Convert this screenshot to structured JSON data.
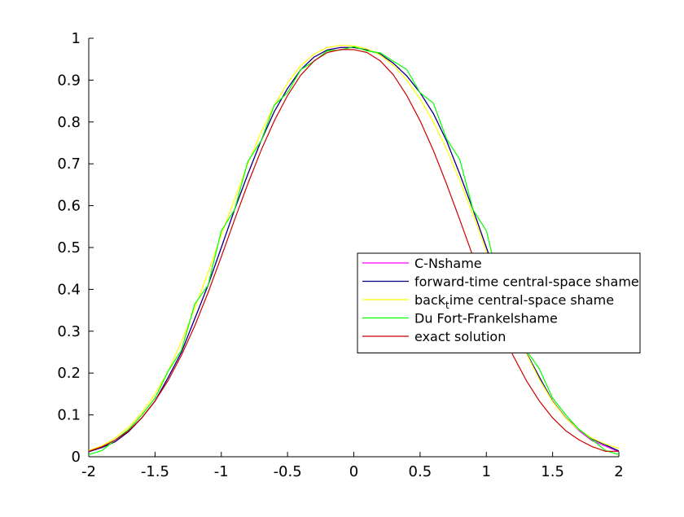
{
  "chart_data": {
    "type": "line",
    "title": "",
    "xlabel": "",
    "ylabel": "",
    "xlim": [
      -2,
      2
    ],
    "ylim": [
      0,
      1
    ],
    "x_ticks": [
      -2,
      -1.5,
      -1,
      -0.5,
      0,
      0.5,
      1,
      1.5,
      2
    ],
    "x_tick_labels": [
      "-2",
      "-1.5",
      "-1",
      "-0.5",
      "0",
      "0.5",
      "1",
      "1.5",
      "2"
    ],
    "y_ticks": [
      0,
      0.1,
      0.2,
      0.3,
      0.4,
      0.5,
      0.6,
      0.7,
      0.8,
      0.9,
      1
    ],
    "y_tick_labels": [
      "0",
      "0.1",
      "0.2",
      "0.3",
      "0.4",
      "0.5",
      "0.6",
      "0.7",
      "0.8",
      "0.9",
      "1"
    ],
    "grid": false,
    "legend_position": "right",
    "x": [
      -2.0,
      -1.9,
      -1.8,
      -1.7,
      -1.6,
      -1.5,
      -1.4,
      -1.3,
      -1.2,
      -1.1,
      -1.0,
      -0.9,
      -0.8,
      -0.7,
      -0.6,
      -0.5,
      -0.4,
      -0.3,
      -0.2,
      -0.1,
      0.0,
      0.1,
      0.2,
      0.3,
      0.4,
      0.5,
      0.6,
      0.7,
      0.8,
      0.9,
      1.0,
      1.1,
      1.2,
      1.3,
      1.4,
      1.5,
      1.6,
      1.7,
      1.8,
      1.9,
      2.0
    ],
    "series": [
      {
        "name": "C-Nshame",
        "color": "#ff00ff",
        "values": [
          0.012,
          0.022,
          0.036,
          0.06,
          0.093,
          0.133,
          0.19,
          0.25,
          0.33,
          0.41,
          0.5,
          0.59,
          0.675,
          0.755,
          0.825,
          0.88,
          0.925,
          0.955,
          0.972,
          0.978,
          0.978,
          0.972,
          0.962,
          0.94,
          0.91,
          0.87,
          0.82,
          0.755,
          0.675,
          0.59,
          0.5,
          0.41,
          0.33,
          0.25,
          0.19,
          0.133,
          0.093,
          0.062,
          0.038,
          0.025,
          0.012
        ]
      },
      {
        "name": "forward-time central-space shame",
        "color": "#000080",
        "values": [
          0.012,
          0.022,
          0.036,
          0.06,
          0.093,
          0.133,
          0.19,
          0.25,
          0.33,
          0.41,
          0.5,
          0.59,
          0.675,
          0.755,
          0.825,
          0.88,
          0.925,
          0.955,
          0.972,
          0.978,
          0.978,
          0.972,
          0.962,
          0.94,
          0.91,
          0.87,
          0.82,
          0.755,
          0.675,
          0.59,
          0.5,
          0.41,
          0.33,
          0.25,
          0.19,
          0.133,
          0.093,
          0.065,
          0.042,
          0.028,
          0.014
        ]
      },
      {
        "name": "back_time central-space shame",
        "color": "#ffff00",
        "values": [
          0.015,
          0.026,
          0.045,
          0.07,
          0.105,
          0.15,
          0.205,
          0.275,
          0.355,
          0.44,
          0.53,
          0.615,
          0.7,
          0.775,
          0.84,
          0.893,
          0.935,
          0.962,
          0.978,
          0.983,
          0.982,
          0.975,
          0.96,
          0.935,
          0.9,
          0.855,
          0.8,
          0.735,
          0.66,
          0.578,
          0.49,
          0.402,
          0.323,
          0.248,
          0.185,
          0.132,
          0.092,
          0.064,
          0.044,
          0.03,
          0.02
        ]
      },
      {
        "name": "Du Fort-Frankelshame",
        "color": "#00ff00",
        "values": [
          0.005,
          0.015,
          0.04,
          0.065,
          0.1,
          0.14,
          0.205,
          0.255,
          0.365,
          0.41,
          0.54,
          0.59,
          0.705,
          0.755,
          0.84,
          0.87,
          0.925,
          0.945,
          0.97,
          0.972,
          0.98,
          0.97,
          0.965,
          0.945,
          0.925,
          0.87,
          0.845,
          0.76,
          0.71,
          0.59,
          0.54,
          0.41,
          0.365,
          0.255,
          0.21,
          0.14,
          0.1,
          0.065,
          0.04,
          0.015,
          0.005
        ]
      },
      {
        "name": "exact solution",
        "color": "#cc0000",
        "values": [
          0.013,
          0.024,
          0.04,
          0.062,
          0.093,
          0.133,
          0.183,
          0.243,
          0.313,
          0.392,
          0.478,
          0.566,
          0.652,
          0.732,
          0.803,
          0.863,
          0.912,
          0.946,
          0.966,
          0.973,
          0.973,
          0.966,
          0.946,
          0.912,
          0.863,
          0.803,
          0.732,
          0.652,
          0.566,
          0.478,
          0.392,
          0.313,
          0.243,
          0.183,
          0.133,
          0.093,
          0.062,
          0.04,
          0.024,
          0.013,
          0.013
        ]
      }
    ]
  }
}
